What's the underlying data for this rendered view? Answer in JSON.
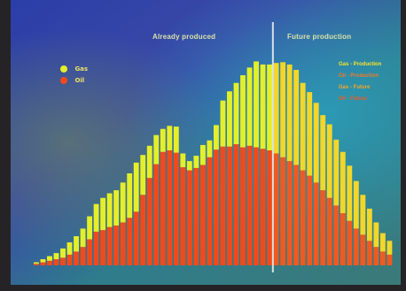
{
  "chart_data": {
    "type": "bar",
    "subtype": "stacked",
    "title": "",
    "region_labels": {
      "left": "Already produced",
      "right": "Future production"
    },
    "series": [
      {
        "name": "Oil",
        "color": "#f04a1c",
        "values": [
          2,
          4,
          6,
          8,
          10,
          14,
          18,
          24,
          34,
          44,
          46,
          50,
          52,
          56,
          62,
          70,
          92,
          114,
          132,
          148,
          150,
          147,
          128,
          124,
          127,
          131,
          141,
          151,
          155,
          155,
          158,
          154,
          156,
          154,
          152,
          150,
          146,
          141,
          136,
          131,
          124,
          117,
          108,
          98,
          88,
          78,
          68,
          58,
          48,
          40,
          32,
          24,
          18,
          14
        ]
      },
      {
        "name": "Gas",
        "color": "#e4ef2a",
        "values": [
          2,
          4,
          6,
          8,
          12,
          16,
          20,
          24,
          30,
          36,
          42,
          44,
          46,
          52,
          58,
          64,
          52,
          42,
          38,
          30,
          32,
          34,
          18,
          12,
          16,
          26,
          22,
          32,
          60,
          72,
          80,
          94,
          102,
          112,
          110,
          112,
          118,
          124,
          126,
          124,
          114,
          109,
          104,
          98,
          96,
          86,
          80,
          72,
          62,
          52,
          42,
          32,
          24,
          18
        ]
      }
    ],
    "side_legend": [
      "Gas - Production",
      "Oil - Production",
      "Gas - Future",
      "Oil - Future"
    ],
    "side_legend_colors": [
      "#f6e32a",
      "#f07a2a",
      "#f6a62a",
      "#ee5a22"
    ],
    "divider_after_bar": 35,
    "ylim": [
      0,
      300
    ],
    "xlabel": "",
    "ylabel": ""
  }
}
